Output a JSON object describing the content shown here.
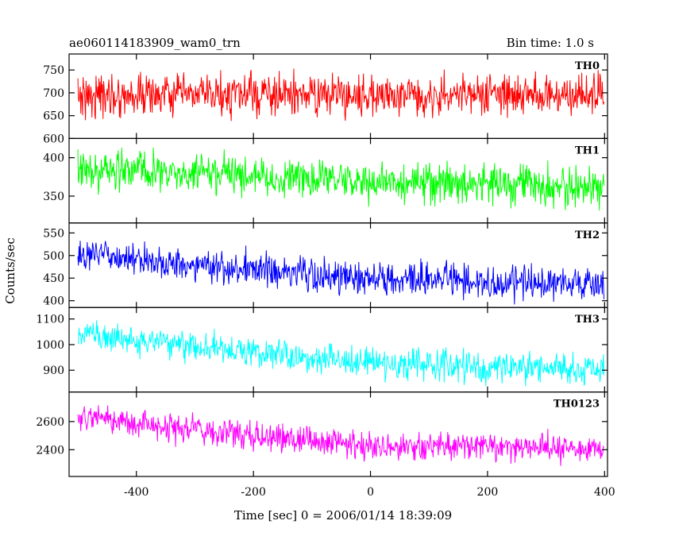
{
  "chart_data": {
    "type": "line",
    "title": "ae060114183909_wam0_trn",
    "subtitle": "Bin time: 1.0 s",
    "xlabel": "Time [sec] 0 = 2006/01/14 18:39:09",
    "ylabel": "Counts/sec",
    "xlim": [
      -515,
      405
    ],
    "x_step": 1,
    "xticks": [
      -400,
      -200,
      0,
      200,
      400
    ],
    "grid": false,
    "series": [
      {
        "name": "TH0",
        "color": "#ff0000",
        "x_range": [
          -500,
          399
        ],
        "ylim": [
          600,
          785
        ],
        "yticks": [
          600,
          650,
          700,
          750
        ],
        "trend": [
          [
            -500,
            695
          ],
          [
            399,
            695
          ]
        ],
        "noise_amplitude": 42
      },
      {
        "name": "TH1",
        "color": "#00ff00",
        "x_range": [
          -500,
          399
        ],
        "ylim": [
          315,
          425
        ],
        "yticks": [
          350,
          400
        ],
        "trend": [
          [
            -500,
            385
          ],
          [
            -300,
            378
          ],
          [
            0,
            368
          ],
          [
            399,
            362
          ]
        ],
        "noise_amplitude": 24
      },
      {
        "name": "TH2",
        "color": "#0000ff",
        "x_range": [
          -500,
          399
        ],
        "ylim": [
          385,
          572
        ],
        "yticks": [
          400,
          450,
          500,
          550
        ],
        "trend": [
          [
            -500,
            505
          ],
          [
            -300,
            480
          ],
          [
            -100,
            458
          ],
          [
            0,
            448
          ],
          [
            399,
            438
          ]
        ],
        "noise_amplitude": 34
      },
      {
        "name": "TH3",
        "color": "#00ffff",
        "x_range": [
          -500,
          399
        ],
        "ylim": [
          815,
          1145
        ],
        "yticks": [
          900,
          1000,
          1100
        ],
        "trend": [
          [
            -500,
            1040
          ],
          [
            -300,
            990
          ],
          [
            -100,
            955
          ],
          [
            0,
            930
          ],
          [
            200,
            915
          ],
          [
            399,
            905
          ]
        ],
        "noise_amplitude": 55
      },
      {
        "name": "TH0123",
        "color": "#ff00ff",
        "x_range": [
          -500,
          399
        ],
        "ylim": [
          2210,
          2810
        ],
        "yticks": [
          2400,
          2600
        ],
        "trend": [
          [
            -500,
            2640
          ],
          [
            -300,
            2540
          ],
          [
            -100,
            2460
          ],
          [
            0,
            2430
          ],
          [
            399,
            2410
          ]
        ],
        "noise_amplitude": 95
      }
    ]
  }
}
